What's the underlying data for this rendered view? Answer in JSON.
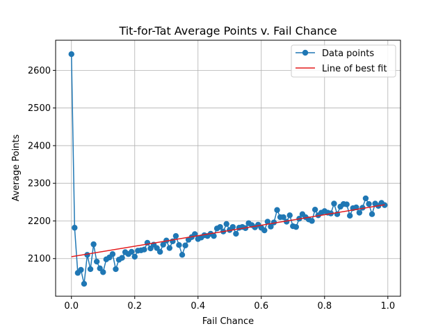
{
  "chart_data": {
    "type": "line",
    "title": "Tit-for-Tat Average Points v. Fail Chance",
    "xlabel": "Fail Chance",
    "ylabel": "Average Points",
    "xlim": [
      -0.05,
      1.04
    ],
    "ylim": [
      2000,
      2680
    ],
    "xticks": [
      "0.0",
      "0.2",
      "0.4",
      "0.6",
      "0.8",
      "1.0"
    ],
    "yticks": [
      "2100",
      "2200",
      "2300",
      "2400",
      "2500",
      "2600"
    ],
    "grid": true,
    "legend": {
      "placement": "top-right",
      "entries": [
        "Data points",
        "Line of best fit"
      ]
    },
    "colors": {
      "data": "#1f77b4",
      "fit": "#e41a1c"
    },
    "series": [
      {
        "name": "Data points",
        "style": "line-with-markers",
        "x": [
          0.0,
          0.01,
          0.02,
          0.03,
          0.04,
          0.05,
          0.06,
          0.07,
          0.08,
          0.09,
          0.1,
          0.11,
          0.12,
          0.13,
          0.14,
          0.15,
          0.16,
          0.17,
          0.18,
          0.19,
          0.2,
          0.21,
          0.22,
          0.23,
          0.24,
          0.25,
          0.26,
          0.27,
          0.28,
          0.29,
          0.3,
          0.31,
          0.32,
          0.33,
          0.34,
          0.35,
          0.36,
          0.37,
          0.38,
          0.39,
          0.4,
          0.41,
          0.42,
          0.43,
          0.44,
          0.45,
          0.46,
          0.47,
          0.48,
          0.49,
          0.5,
          0.51,
          0.52,
          0.53,
          0.54,
          0.55,
          0.56,
          0.57,
          0.58,
          0.59,
          0.6,
          0.61,
          0.62,
          0.63,
          0.64,
          0.65,
          0.66,
          0.67,
          0.68,
          0.69,
          0.7,
          0.71,
          0.72,
          0.73,
          0.74,
          0.75,
          0.76,
          0.77,
          0.78,
          0.79,
          0.8,
          0.81,
          0.82,
          0.83,
          0.84,
          0.85,
          0.86,
          0.87,
          0.88,
          0.89,
          0.9,
          0.91,
          0.92,
          0.93,
          0.94,
          0.95,
          0.96,
          0.97,
          0.98,
          0.99
        ],
        "y": [
          2643,
          2182,
          2062,
          2070,
          2033,
          2110,
          2072,
          2138,
          2092,
          2074,
          2064,
          2098,
          2103,
          2112,
          2072,
          2097,
          2102,
          2117,
          2112,
          2118,
          2105,
          2121,
          2122,
          2124,
          2142,
          2127,
          2137,
          2128,
          2118,
          2137,
          2148,
          2128,
          2146,
          2160,
          2136,
          2110,
          2135,
          2150,
          2157,
          2165,
          2152,
          2156,
          2162,
          2160,
          2166,
          2160,
          2180,
          2184,
          2172,
          2192,
          2176,
          2184,
          2166,
          2182,
          2184,
          2181,
          2194,
          2189,
          2183,
          2190,
          2182,
          2175,
          2198,
          2185,
          2196,
          2229,
          2210,
          2210,
          2198,
          2215,
          2186,
          2184,
          2206,
          2218,
          2210,
          2204,
          2200,
          2230,
          2215,
          2222,
          2226,
          2222,
          2220,
          2246,
          2218,
          2238,
          2245,
          2244,
          2214,
          2234,
          2236,
          2222,
          2235,
          2260,
          2245,
          2218,
          2246,
          2240,
          2248,
          2242
        ]
      },
      {
        "name": "Line of best fit",
        "style": "line",
        "x": [
          0.0,
          0.99
        ],
        "y": [
          2105,
          2243
        ]
      }
    ]
  }
}
